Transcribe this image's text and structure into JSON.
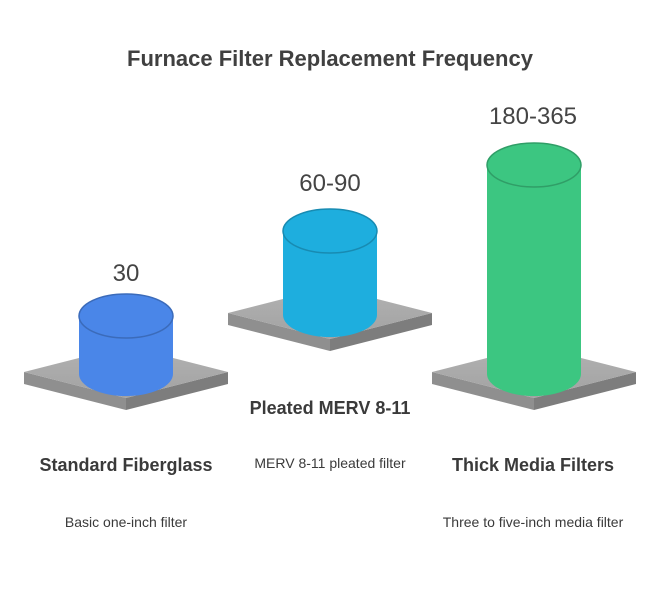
{
  "chart_data": {
    "type": "bar",
    "title": "Furnace Filter Replacement Frequency",
    "categories": [
      "Standard Fiberglass",
      "Pleated MERV 8-11",
      "Thick Media Filters"
    ],
    "value_labels": [
      "30",
      "60-90",
      "180-365"
    ],
    "descriptions": [
      "Basic one-inch filter",
      "MERV 8-11 pleated filter",
      "Three to five-inch media filter"
    ],
    "colors": [
      "#4a86e8",
      "#1eaede",
      "#3cc681"
    ],
    "base_color": "#999999",
    "style": "3d-cylinders"
  }
}
